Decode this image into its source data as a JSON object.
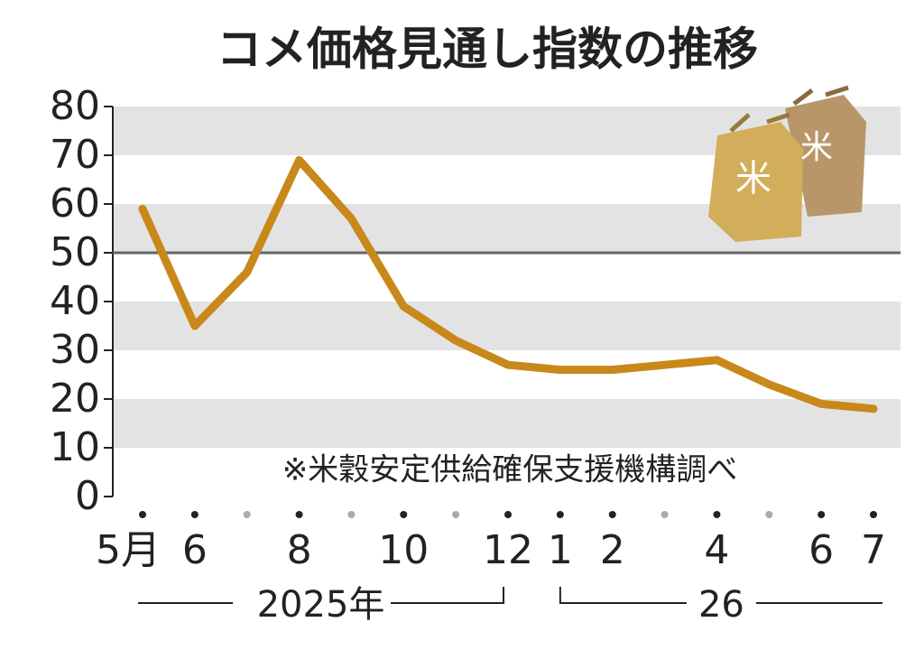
{
  "chart_data": {
    "type": "line",
    "title": "コメ価格見通し指数の推移",
    "note": "※米穀安定供給確保支援機構調べ",
    "categories": [
      "5月",
      "6",
      null,
      "8",
      null,
      "10",
      null,
      "12",
      "1",
      "2",
      null,
      "4",
      null,
      "6",
      "7"
    ],
    "series": [
      {
        "name": "コメ価格見通し指数",
        "color": "#c8881a",
        "values": [
          59,
          35,
          46,
          69,
          57,
          39,
          32,
          27,
          26,
          26,
          27,
          28,
          23,
          19,
          18
        ]
      }
    ],
    "year_labels": [
      "2025年",
      "26"
    ],
    "ylim": [
      0,
      80
    ],
    "yticks": [
      0,
      10,
      20,
      30,
      40,
      50,
      60,
      70,
      80
    ],
    "reference_line": 50,
    "grid": true
  }
}
